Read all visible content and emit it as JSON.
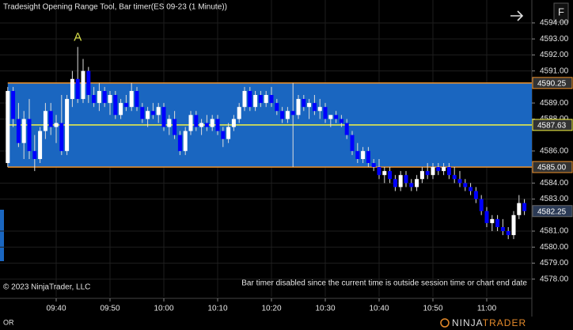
{
  "window_title": "Tradesight Opening Range Tool, Bar timer(ES 09-23 (1 Minute))",
  "toolbar_button": "F",
  "chart_data": {
    "type": "candlestick",
    "categories": [
      null,
      null,
      null,
      null,
      null,
      null,
      null,
      null,
      null,
      "09:40",
      null,
      null,
      null,
      null,
      null,
      null,
      null,
      null,
      null,
      "09:50",
      null,
      null,
      null,
      null,
      null,
      null,
      null,
      null,
      null,
      "10:00",
      null,
      null,
      null,
      null,
      null,
      null,
      null,
      null,
      null,
      "10:10",
      null,
      null,
      null,
      null,
      null,
      null,
      null,
      null,
      null,
      "10:20",
      null,
      null,
      null,
      null,
      null,
      null,
      null,
      null,
      null,
      "10:30",
      null,
      null,
      null,
      null,
      null,
      null,
      null,
      null,
      null,
      "10:40",
      null,
      null,
      null,
      null,
      null,
      null,
      null,
      null,
      null,
      "10:50",
      null,
      null,
      null,
      null,
      null,
      null,
      null,
      null,
      null,
      "11:00",
      null,
      null,
      null,
      null,
      null,
      null,
      null
    ],
    "open": [
      4585.25,
      4589.75,
      4588.0,
      4586.5,
      4588.0,
      4586.0,
      4585.5,
      4587.25,
      4588.5,
      4587.5,
      4587.75,
      4586.0,
      4589.25,
      4590.5,
      4589.25,
      4591.0,
      4589.5,
      4589.0,
      4589.75,
      4589.0,
      4589.5,
      4588.25,
      4589.0,
      4588.75,
      4589.75,
      4588.75,
      4588.0,
      4588.5,
      4588.25,
      4588.75,
      4587.5,
      4588.0,
      4587.0,
      4586.0,
      4587.25,
      4588.25,
      4587.5,
      4587.75,
      4587.5,
      4588.0,
      4587.25,
      4586.75,
      4587.5,
      4588.0,
      4588.75,
      4589.75,
      4588.75,
      4589.5,
      4589.0,
      4589.5,
      4589.0,
      4588.5,
      4588.0,
      4588.5,
      4588.25,
      4589.25,
      4588.75,
      4589.0,
      4588.5,
      4588.75,
      4588.0,
      4588.25,
      4588.0,
      4587.75,
      4587.0,
      4586.0,
      4585.5,
      4586.0,
      4585.25,
      4585.0,
      4584.5,
      4584.75,
      4584.25,
      4583.75,
      4584.5,
      4584.0,
      4583.75,
      4584.25,
      4584.75,
      4584.5,
      4585.0,
      4584.75,
      4585.0,
      4584.5,
      4584.25,
      4584.0,
      4583.75,
      4583.5,
      4583.0,
      4582.25,
      4581.5,
      4581.75,
      4581.25,
      4581.0,
      4580.75,
      4582.0,
      4582.75
    ],
    "high": [
      4590.0,
      4590.0,
      4589.0,
      4588.5,
      4589.25,
      4587.0,
      4587.5,
      4589.0,
      4589.0,
      4588.25,
      4589.5,
      4589.5,
      4591.0,
      4592.5,
      4591.75,
      4591.25,
      4590.0,
      4590.25,
      4590.0,
      4589.75,
      4589.75,
      4589.25,
      4589.5,
      4590.25,
      4590.0,
      4589.0,
      4588.75,
      4589.0,
      4589.0,
      4589.0,
      4588.25,
      4588.5,
      4587.25,
      4587.5,
      4588.5,
      4588.5,
      4588.0,
      4588.25,
      4588.25,
      4588.25,
      4587.5,
      4587.75,
      4588.25,
      4589.0,
      4590.0,
      4590.0,
      4589.75,
      4589.75,
      4589.75,
      4590.0,
      4589.25,
      4588.75,
      4588.75,
      4590.25,
      4589.5,
      4589.5,
      4589.25,
      4589.5,
      4589.25,
      4589.0,
      4588.25,
      4588.5,
      4588.25,
      4588.0,
      4587.25,
      4586.5,
      4586.25,
      4586.25,
      4585.5,
      4585.5,
      4585.0,
      4585.0,
      4584.5,
      4584.75,
      4584.75,
      4584.25,
      4584.5,
      4585.0,
      4585.25,
      4585.25,
      4585.25,
      4585.25,
      4585.25,
      4585.0,
      4584.75,
      4584.25,
      4584.0,
      4583.75,
      4583.25,
      4582.5,
      4582.0,
      4582.0,
      4581.75,
      4581.25,
      4582.25,
      4583.25,
      4583.0
    ],
    "low": [
      4585.0,
      4587.5,
      4586.25,
      4585.5,
      4585.5,
      4584.75,
      4585.25,
      4586.75,
      4587.0,
      4586.5,
      4585.75,
      4585.75,
      4588.75,
      4589.0,
      4589.0,
      4589.0,
      4588.75,
      4588.5,
      4588.75,
      4588.25,
      4588.0,
      4588.0,
      4588.5,
      4588.5,
      4588.5,
      4587.75,
      4587.5,
      4588.0,
      4587.75,
      4587.25,
      4587.0,
      4586.75,
      4585.75,
      4585.75,
      4587.0,
      4587.25,
      4587.0,
      4587.25,
      4587.25,
      4587.0,
      4586.25,
      4586.5,
      4587.25,
      4587.75,
      4588.5,
      4588.5,
      4588.5,
      4588.75,
      4588.75,
      4588.75,
      4588.25,
      4587.75,
      4587.75,
      4585.0,
      4588.0,
      4588.5,
      4588.0,
      4588.25,
      4588.0,
      4587.75,
      4587.5,
      4587.75,
      4587.5,
      4586.75,
      4585.75,
      4585.25,
      4585.25,
      4585.0,
      4584.75,
      4584.25,
      4584.0,
      4584.0,
      4583.5,
      4583.5,
      4583.75,
      4583.5,
      4583.5,
      4584.0,
      4584.25,
      4584.25,
      4584.5,
      4584.5,
      4584.25,
      4584.0,
      4583.75,
      4583.5,
      4583.25,
      4582.75,
      4582.0,
      4581.25,
      4581.0,
      4581.0,
      4580.75,
      4580.5,
      4580.5,
      4581.75,
      4582.0
    ],
    "close": [
      4589.75,
      4588.0,
      4586.5,
      4588.0,
      4586.0,
      4585.5,
      4587.25,
      4588.5,
      4587.5,
      4587.75,
      4586.0,
      4589.25,
      4590.5,
      4589.25,
      4591.0,
      4589.5,
      4589.0,
      4589.75,
      4589.0,
      4589.5,
      4588.25,
      4589.0,
      4588.75,
      4589.75,
      4588.75,
      4588.0,
      4588.5,
      4588.25,
      4588.75,
      4587.5,
      4588.0,
      4587.0,
      4586.0,
      4587.25,
      4588.25,
      4587.5,
      4587.75,
      4587.5,
      4588.0,
      4587.25,
      4586.75,
      4587.5,
      4588.0,
      4588.75,
      4589.75,
      4588.75,
      4589.5,
      4589.0,
      4589.5,
      4589.0,
      4588.5,
      4588.0,
      4588.5,
      4588.25,
      4589.25,
      4588.75,
      4589.0,
      4588.5,
      4588.75,
      4588.0,
      4588.25,
      4588.0,
      4587.75,
      4587.0,
      4586.0,
      4585.5,
      4586.0,
      4585.25,
      4585.0,
      4584.5,
      4584.75,
      4584.25,
      4583.75,
      4584.5,
      4584.0,
      4583.75,
      4584.25,
      4584.75,
      4584.5,
      4585.0,
      4584.75,
      4585.0,
      4584.5,
      4584.25,
      4584.0,
      4583.75,
      4583.5,
      4583.0,
      4582.25,
      4581.5,
      4581.75,
      4581.25,
      4581.0,
      4580.75,
      4582.0,
      4582.75,
      4582.25
    ],
    "up_color": "#ffffff",
    "down_color": "#0000ff",
    "ylim": [
      4576.9,
      4595.43
    ],
    "yticks": [
      {
        "value": 4594,
        "label": "4594.00"
      },
      {
        "value": 4593,
        "label": "4593.00"
      },
      {
        "value": 4592,
        "label": "4592.00"
      },
      {
        "value": 4591,
        "label": "4591.00"
      },
      {
        "value": 4589,
        "label": "4589.00"
      },
      {
        "value": 4588,
        "label": "4588.00"
      },
      {
        "value": 4586,
        "label": "4586.00"
      },
      {
        "value": 4584,
        "label": "4584.00"
      },
      {
        "value": 4583,
        "label": "4583.00"
      },
      {
        "value": 4581,
        "label": "4581.00"
      },
      {
        "value": 4580,
        "label": "4580.00"
      },
      {
        "value": 4579,
        "label": "4579.00"
      },
      {
        "value": 4578,
        "label": "4578.00"
      }
    ],
    "grid": true,
    "opening_range": {
      "high": {
        "value": 4590.25,
        "label": "4590.25"
      },
      "mid": {
        "value": 4587.63,
        "label": "4587.63"
      },
      "low": {
        "value": 4585,
        "label": "4585.00"
      },
      "fill": "#1a66c0",
      "border_color": "#f0922a",
      "mid_color": "#f5f542"
    },
    "last_price": {
      "value": 4582.25,
      "label": "4582.25"
    },
    "annotation": "A",
    "copyright": "© 2023 NinjaTrader, LLC",
    "status_text": "Bar timer disabled since the current time is outside session time or chart end date",
    "panel_label": "OR",
    "logo": [
      "NINJA",
      "TRADER"
    ]
  }
}
